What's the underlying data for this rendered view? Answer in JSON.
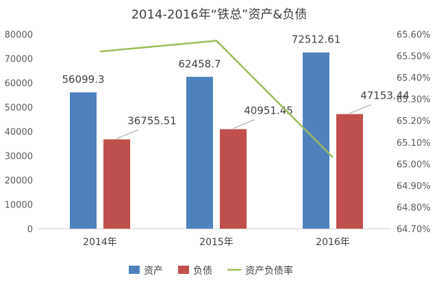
{
  "chart_data": {
    "type": "bar",
    "title": "2014-2016年“铁总”资产&负债",
    "categories": [
      "2014年",
      "2015年",
      "2016年"
    ],
    "series": [
      {
        "name": "资产",
        "type": "bar",
        "axis": "left",
        "color": "#4F81BD",
        "values": [
          56099.3,
          62458.7,
          72512.61
        ],
        "labels": [
          "56099.3",
          "62458.7",
          "72512.61"
        ]
      },
      {
        "name": "负债",
        "type": "bar",
        "axis": "left",
        "color": "#C0504D",
        "values": [
          36755.51,
          40951.45,
          47153.44
        ],
        "labels": [
          "36755.51",
          "40951.45",
          "47153.44"
        ]
      },
      {
        "name": "资产负债率",
        "type": "line",
        "axis": "right",
        "color": "#9BBB59",
        "values": [
          65.52,
          65.57,
          65.03
        ]
      }
    ],
    "y_left": {
      "min": 0,
      "max": 80000,
      "step": 10000,
      "ticks": [
        "0",
        "10000",
        "20000",
        "30000",
        "40000",
        "50000",
        "60000",
        "70000",
        "80000"
      ]
    },
    "y_right": {
      "min": 64.7,
      "max": 65.6,
      "step": 0.1,
      "ticks": [
        "64.70%",
        "64.80%",
        "64.90%",
        "65.00%",
        "65.10%",
        "65.20%",
        "65.30%",
        "65.40%",
        "65.50%",
        "65.60%"
      ]
    },
    "grid": false,
    "legend_position": "bottom"
  }
}
